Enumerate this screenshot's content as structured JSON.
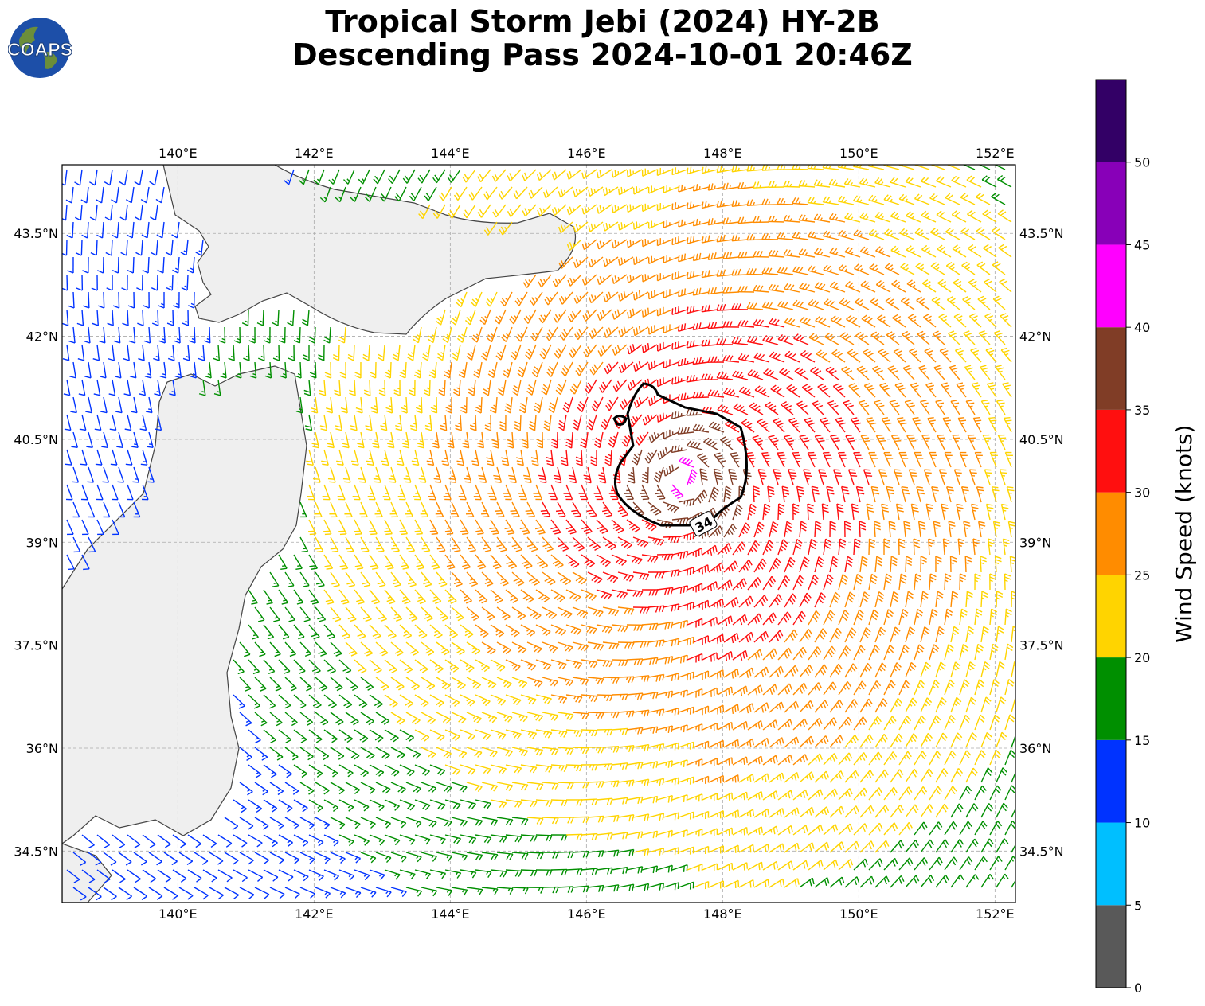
{
  "title": {
    "line1": "Tropical Storm Jebi (2024) HY-2B",
    "line2": "Descending Pass 2024-10-01 20:46Z"
  },
  "logo": {
    "text": "COAPS"
  },
  "map": {
    "lon_range": [
      138.3,
      152.3
    ],
    "lat_range": [
      33.75,
      44.5
    ],
    "lon_ticks": [
      {
        "value": 140,
        "label": "140°E"
      },
      {
        "value": 142,
        "label": "142°E"
      },
      {
        "value": 144,
        "label": "144°E"
      },
      {
        "value": 146,
        "label": "146°E"
      },
      {
        "value": 148,
        "label": "148°E"
      },
      {
        "value": 150,
        "label": "150°E"
      },
      {
        "value": 152,
        "label": "152°E"
      }
    ],
    "lat_ticks": [
      {
        "value": 43.5,
        "label": "43.5°N"
      },
      {
        "value": 42.0,
        "label": "42°N"
      },
      {
        "value": 40.5,
        "label": "40.5°N"
      },
      {
        "value": 39.0,
        "label": "39°N"
      },
      {
        "value": 37.5,
        "label": "37.5°N"
      },
      {
        "value": 36.0,
        "label": "36°N"
      },
      {
        "value": 34.5,
        "label": "34.5°N"
      }
    ],
    "gridlines": true,
    "storm_center": {
      "lon": 147.4,
      "lat": 39.9
    },
    "contour_label": "34",
    "contour_knots": 34,
    "land_color": "#efefef",
    "coast_color": "#444444"
  },
  "colorbar": {
    "label": "Wind Speed (knots)",
    "ticks": [
      "0",
      "5",
      "10",
      "15",
      "20",
      "25",
      "30",
      "35",
      "40",
      "45",
      "50"
    ],
    "bins": [
      {
        "min": 0,
        "max": 5,
        "color": "#595959"
      },
      {
        "min": 5,
        "max": 10,
        "color": "#00bfff"
      },
      {
        "min": 10,
        "max": 15,
        "color": "#0033ff"
      },
      {
        "min": 15,
        "max": 20,
        "color": "#008f00"
      },
      {
        "min": 20,
        "max": 25,
        "color": "#ffd400"
      },
      {
        "min": 25,
        "max": 30,
        "color": "#ff8c00"
      },
      {
        "min": 30,
        "max": 35,
        "color": "#ff0f0f"
      },
      {
        "min": 35,
        "max": 40,
        "color": "#803d26"
      },
      {
        "min": 40,
        "max": 45,
        "color": "#ff00ff"
      },
      {
        "min": 45,
        "max": 50,
        "color": "#8800b8"
      },
      {
        "min": 50,
        "max": 55,
        "color": "#330066"
      }
    ]
  }
}
